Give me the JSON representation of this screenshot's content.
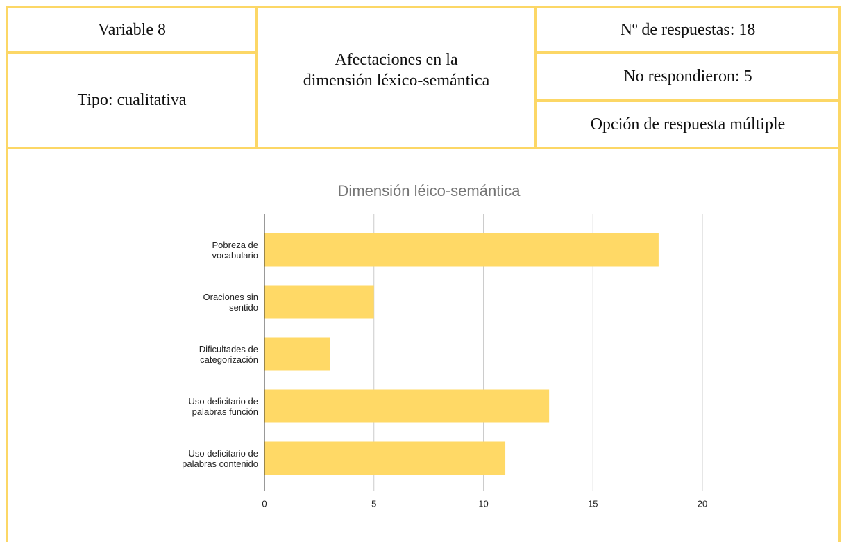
{
  "table": {
    "variable": "Variable 8",
    "tipo": "Tipo: cualitativa",
    "nombre": "Afectaciones en la\ndimensión léxico-semántica",
    "respuestas": "Nº de respuestas: 18",
    "no_respondieron": "No respondieron: 5",
    "opcion": "Opción de respuesta múltiple"
  },
  "chart_data": {
    "type": "bar",
    "orientation": "horizontal",
    "title": "Dimensión léico-semántica",
    "categories": [
      "Pobreza de\nvocabulario",
      "Oraciones sin\nsentido",
      "Dificultades de\ncategorización",
      "Uso deficitario de\npalabras función",
      "Uso deficitario de\npalabras contenido"
    ],
    "values": [
      18,
      5,
      3,
      13,
      11
    ],
    "color": "#ffd966",
    "xlim": [
      0,
      20
    ],
    "xticks": [
      0,
      5,
      10,
      15,
      20
    ],
    "grid": true
  }
}
